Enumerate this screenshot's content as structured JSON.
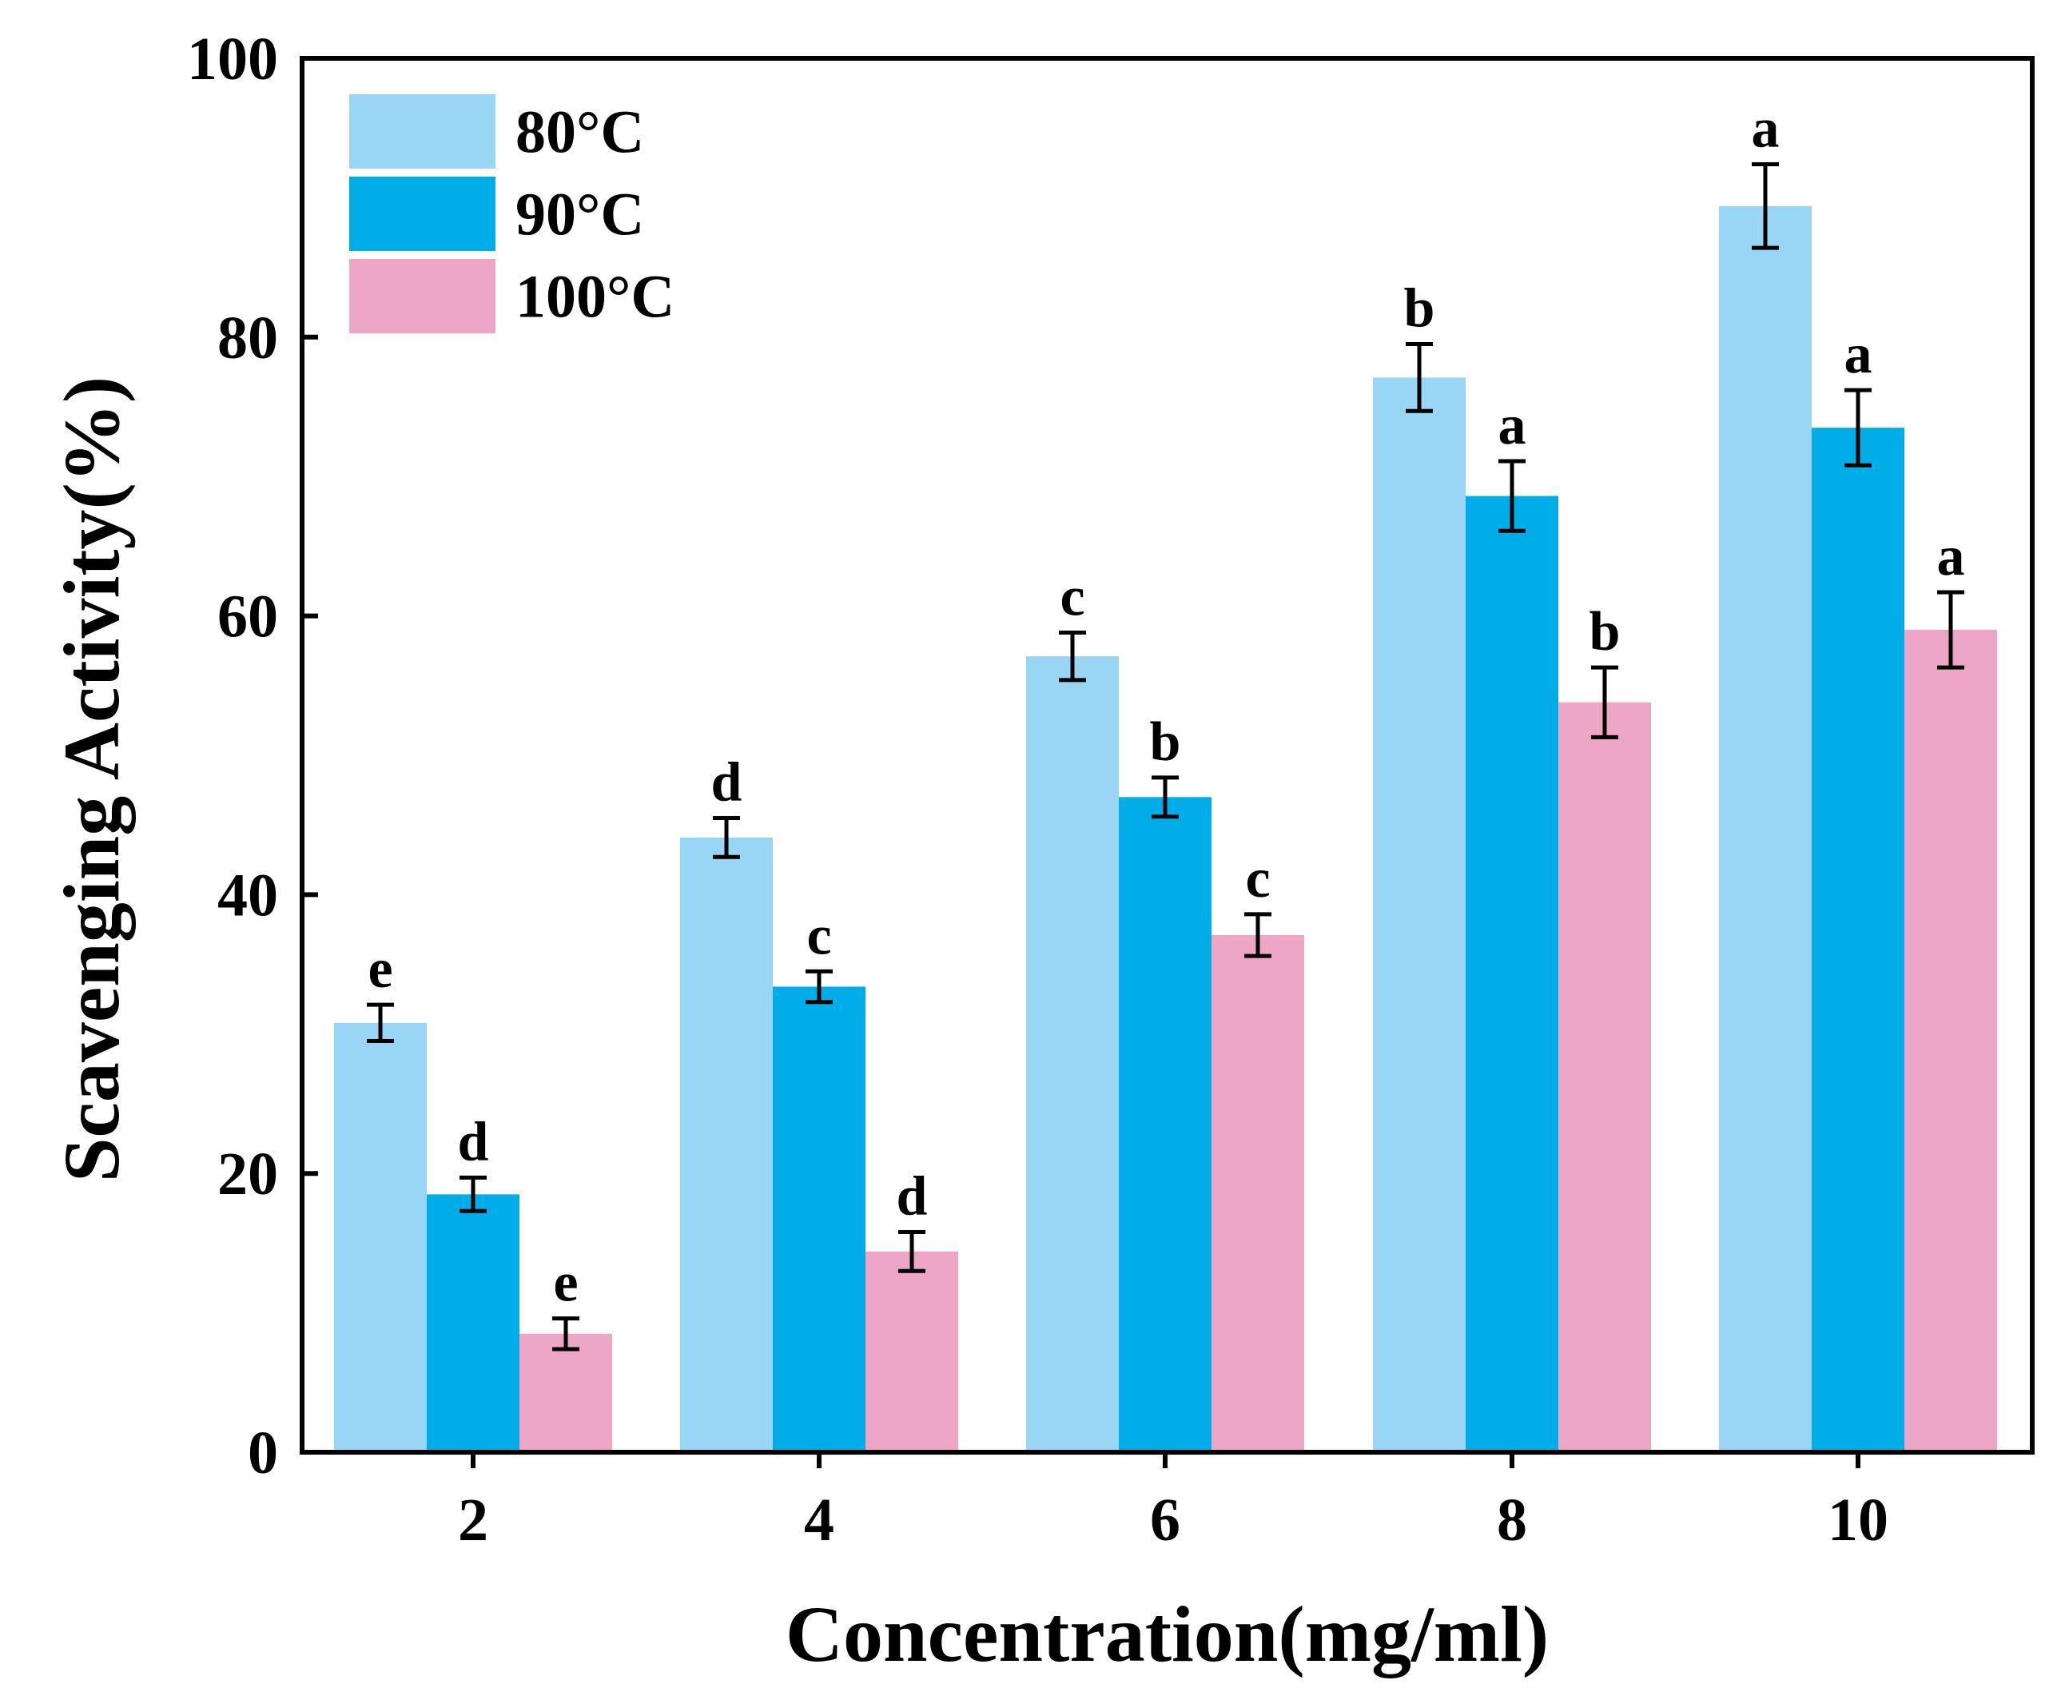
{
  "chart_data": {
    "type": "bar",
    "title": "",
    "xlabel": "Concentration(mg/ml)",
    "ylabel": "Scavenging Activity(%)",
    "ylim": [
      0,
      100
    ],
    "yticks": [
      "0",
      "20",
      "40",
      "60",
      "80",
      "100"
    ],
    "categories": [
      "2",
      "4",
      "6",
      "8",
      "10"
    ],
    "legend_position": "top-left",
    "grid": false,
    "series": [
      {
        "name": "80°C",
        "color": "#99D5F5",
        "values": [
          30.8,
          44.1,
          57.1,
          77.1,
          89.4
        ],
        "errors": [
          1.3,
          1.4,
          1.7,
          2.4,
          3.0
        ],
        "labels": [
          "e",
          "d",
          "c",
          "b",
          "a"
        ]
      },
      {
        "name": "90°C",
        "color": "#00ADE6",
        "values": [
          18.5,
          33.4,
          47.0,
          68.6,
          73.5
        ],
        "errors": [
          1.2,
          1.1,
          1.4,
          2.5,
          2.7
        ],
        "labels": [
          "d",
          "c",
          "b",
          "a",
          "a"
        ]
      },
      {
        "name": "100°C",
        "color": "#EEA6C6",
        "values": [
          8.5,
          14.4,
          37.1,
          53.8,
          59.0
        ],
        "errors": [
          1.1,
          1.4,
          1.5,
          2.5,
          2.7
        ],
        "labels": [
          "e",
          "d",
          "c",
          "b",
          "a"
        ]
      }
    ]
  }
}
